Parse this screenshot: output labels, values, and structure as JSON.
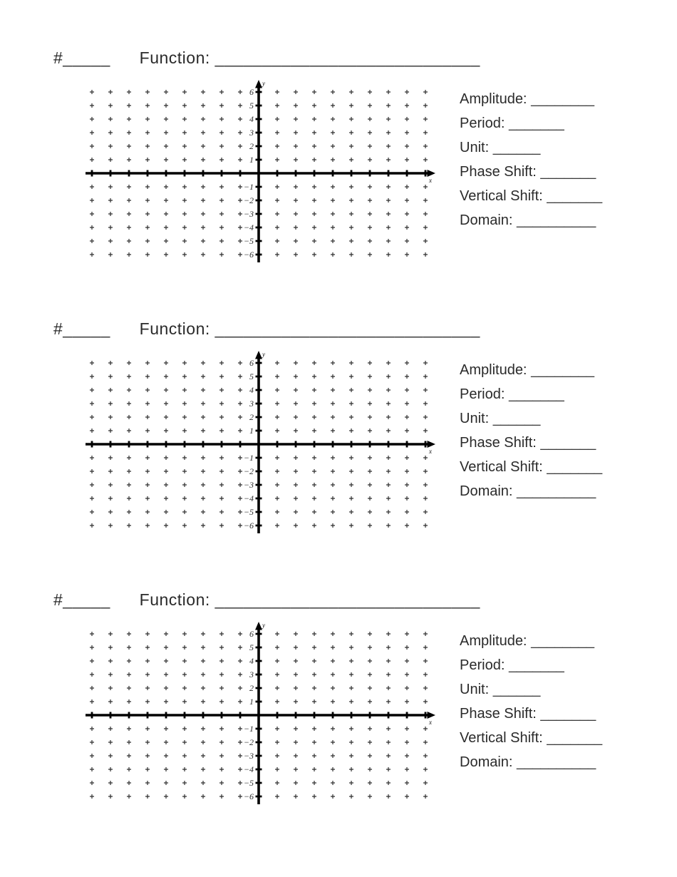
{
  "document": {
    "background": "#ffffff",
    "text_color": "#2a2a2a"
  },
  "sections": [
    {
      "header": {
        "number_label": "#",
        "number_blank": "_____",
        "function_label": "Function:",
        "function_blank": "____________________________"
      },
      "fields": [
        {
          "label": "Amplitude:",
          "blank": "________"
        },
        {
          "label": "Period:",
          "blank": "_______"
        },
        {
          "label": "Unit:",
          "blank": "______"
        },
        {
          "label": "Phase Shift:",
          "blank": "_______"
        },
        {
          "label": "Vertical Shift:",
          "blank": "_______"
        },
        {
          "label": "Domain:",
          "blank": "__________"
        }
      ]
    },
    {
      "header": {
        "number_label": "#",
        "number_blank": "_____",
        "function_label": "Function:",
        "function_blank": "____________________________"
      },
      "fields": [
        {
          "label": "Amplitude:",
          "blank": "________"
        },
        {
          "label": "Period:",
          "blank": "_______"
        },
        {
          "label": "Unit:",
          "blank": "______"
        },
        {
          "label": "Phase Shift:",
          "blank": "_______"
        },
        {
          "label": "Vertical Shift:",
          "blank": "_______"
        },
        {
          "label": "Domain:",
          "blank": "__________"
        }
      ]
    },
    {
      "header": {
        "number_label": "#",
        "number_blank": "_____",
        "function_label": "Function:",
        "function_blank": "____________________________"
      },
      "fields": [
        {
          "label": "Amplitude:",
          "blank": "________"
        },
        {
          "label": "Period:",
          "blank": "_______"
        },
        {
          "label": "Unit:",
          "blank": "______"
        },
        {
          "label": "Phase Shift:",
          "blank": "_______"
        },
        {
          "label": "Vertical Shift:",
          "blank": "_______"
        },
        {
          "label": "Domain:",
          "blank": "__________"
        }
      ]
    }
  ],
  "graph": {
    "type": "empty-coordinate-grid",
    "x_min": -9,
    "x_max": 9,
    "y_min": -6,
    "y_max": 6,
    "x_axis_label": "x",
    "y_axis_label": "y",
    "grid_marker": "+",
    "axis_color": "#000000",
    "marker_color": "#2e2e2e",
    "y_ticks": [
      {
        "v": 6,
        "label": "6"
      },
      {
        "v": 5,
        "label": "5"
      },
      {
        "v": 4,
        "label": "4"
      },
      {
        "v": 3,
        "label": "3"
      },
      {
        "v": 2,
        "label": "2"
      },
      {
        "v": 1,
        "label": "1"
      },
      {
        "v": -1,
        "label": "−1"
      },
      {
        "v": -2,
        "label": "−2"
      },
      {
        "v": -3,
        "label": "−3"
      },
      {
        "v": -4,
        "label": "−4"
      },
      {
        "v": -5,
        "label": "−5"
      },
      {
        "v": -6,
        "label": "−6"
      }
    ]
  }
}
